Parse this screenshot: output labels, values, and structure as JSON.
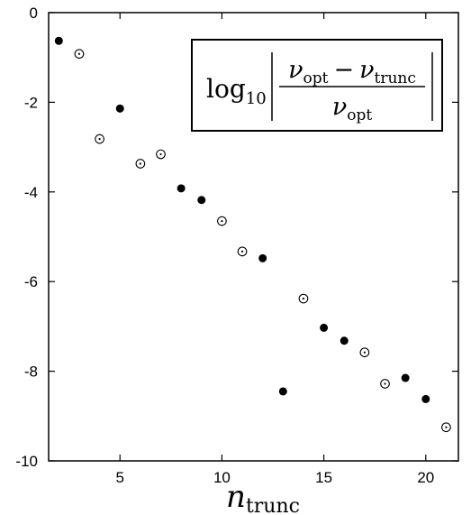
{
  "chart_data": {
    "type": "scatter",
    "title": "",
    "xlabel": "n",
    "xlabel_sub": "trunc",
    "ylabel": "",
    "xlim": [
      1.5,
      21.6
    ],
    "ylim": [
      -10,
      0
    ],
    "x_ticks": [
      5,
      10,
      15,
      20
    ],
    "y_ticks": [
      0,
      -2,
      -4,
      -6,
      -8,
      -10
    ],
    "x_tick_labels": [
      "5",
      "10",
      "15",
      "20"
    ],
    "y_tick_labels": [
      "0",
      "-2",
      "-4",
      "-6",
      "-8",
      "-10"
    ],
    "grid": false,
    "series": [
      {
        "marker": "filled-circle",
        "color": "#000000",
        "points": [
          {
            "x": 2,
            "y": -0.63
          },
          {
            "x": 5,
            "y": -2.14
          },
          {
            "x": 8,
            "y": -3.92
          },
          {
            "x": 9,
            "y": -4.18
          },
          {
            "x": 12,
            "y": -5.48
          },
          {
            "x": 13,
            "y": -8.45
          },
          {
            "x": 15,
            "y": -7.03
          },
          {
            "x": 16,
            "y": -7.32
          },
          {
            "x": 19,
            "y": -8.15
          },
          {
            "x": 20,
            "y": -8.62
          }
        ]
      },
      {
        "marker": "open-circle-dot",
        "color": "#000000",
        "points": [
          {
            "x": 3,
            "y": -0.92
          },
          {
            "x": 4,
            "y": -2.82
          },
          {
            "x": 6,
            "y": -3.37
          },
          {
            "x": 7,
            "y": -3.16
          },
          {
            "x": 10,
            "y": -4.65
          },
          {
            "x": 11,
            "y": -5.33
          },
          {
            "x": 14,
            "y": -6.38
          },
          {
            "x": 17,
            "y": -7.58
          },
          {
            "x": 18,
            "y": -8.28
          },
          {
            "x": 21,
            "y": -9.25
          }
        ]
      }
    ],
    "annotation": {
      "log_text": "log",
      "log_base": "10",
      "numerator_a": "ν",
      "numerator_a_sub": "opt",
      "minus": "−",
      "numerator_b": "ν",
      "numerator_b_sub": "trunc",
      "denominator": "ν",
      "denominator_sub": "opt",
      "placement": "top-right"
    }
  }
}
